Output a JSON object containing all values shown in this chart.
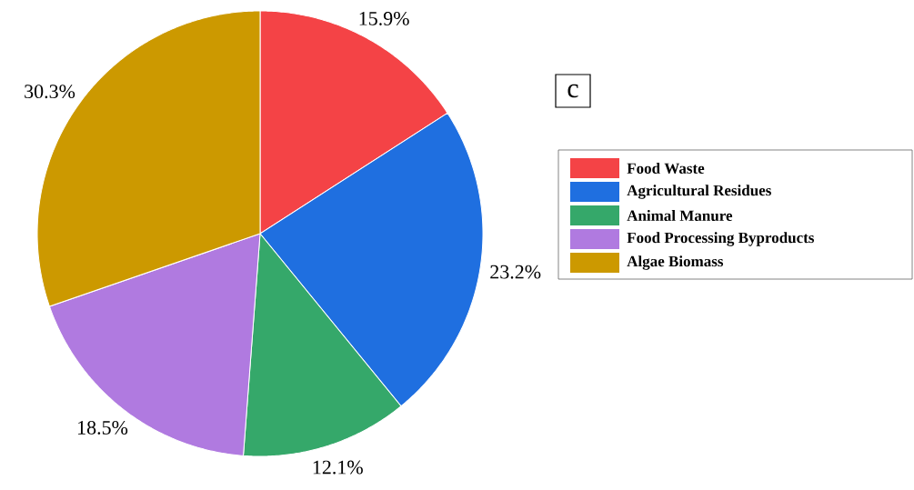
{
  "chart_data": {
    "type": "pie",
    "categories": [
      "Food Waste",
      "Agricultural Residues",
      "Animal Manure",
      "Food Processing Byproducts",
      "Algae Biomass"
    ],
    "values": [
      15.9,
      23.2,
      12.1,
      18.5,
      30.3
    ],
    "colors": [
      "#f44346",
      "#1f6fe0",
      "#35a86a",
      "#b07ae0",
      "#cc9900"
    ],
    "value_labels": [
      "15.9%",
      "23.2%",
      "12.1%",
      "18.5%",
      "30.3%"
    ],
    "legend": "right",
    "annotations": [
      "c"
    ]
  }
}
